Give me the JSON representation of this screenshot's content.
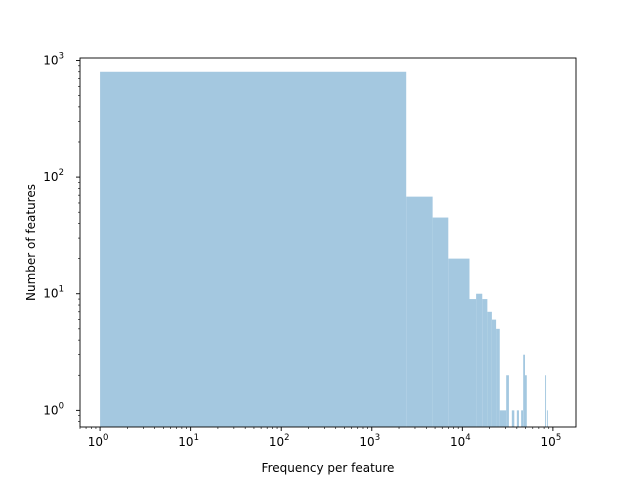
{
  "chart_data": {
    "type": "bar",
    "xlabel": "Frequency per feature",
    "ylabel": "Number of features",
    "xscale": "log",
    "yscale": "log",
    "xlim": [
      0.6,
      180000
    ],
    "ylim": [
      0.72,
      1050
    ],
    "bar_color": "#a4c8e0",
    "grid": false,
    "legend": "none",
    "x_ticks": [
      {
        "value": 1,
        "base": "10",
        "exp": "0"
      },
      {
        "value": 10,
        "base": "10",
        "exp": "1"
      },
      {
        "value": 100,
        "base": "10",
        "exp": "2"
      },
      {
        "value": 1000,
        "base": "10",
        "exp": "3"
      },
      {
        "value": 10000,
        "base": "10",
        "exp": "4"
      },
      {
        "value": 100000,
        "base": "10",
        "exp": "5"
      }
    ],
    "y_ticks": [
      {
        "value": 1,
        "base": "10",
        "exp": "0"
      },
      {
        "value": 10,
        "base": "10",
        "exp": "1"
      },
      {
        "value": 100,
        "base": "10",
        "exp": "2"
      },
      {
        "value": 1000,
        "base": "10",
        "exp": "3"
      }
    ],
    "bins": [
      {
        "x0": 1,
        "x1": 2400,
        "count": 800
      },
      {
        "x0": 2400,
        "x1": 4700,
        "count": 68
      },
      {
        "x0": 4700,
        "x1": 7000,
        "count": 45
      },
      {
        "x0": 7000,
        "x1": 12000,
        "count": 20
      },
      {
        "x0": 12000,
        "x1": 14200,
        "count": 9
      },
      {
        "x0": 14200,
        "x1": 16600,
        "count": 10
      },
      {
        "x0": 16600,
        "x1": 18900,
        "count": 9
      },
      {
        "x0": 18900,
        "x1": 21200,
        "count": 7
      },
      {
        "x0": 21200,
        "x1": 23600,
        "count": 6
      },
      {
        "x0": 23600,
        "x1": 25900,
        "count": 5
      },
      {
        "x0": 25900,
        "x1": 30500,
        "count": 1
      },
      {
        "x0": 30500,
        "x1": 32700,
        "count": 2
      },
      {
        "x0": 35200,
        "x1": 37500,
        "count": 1
      },
      {
        "x0": 40000,
        "x1": 42200,
        "count": 1
      },
      {
        "x0": 44600,
        "x1": 46800,
        "count": 1
      },
      {
        "x0": 47000,
        "x1": 49200,
        "count": 3
      },
      {
        "x0": 49200,
        "x1": 51500,
        "count": 2
      },
      {
        "x0": 82000,
        "x1": 84000,
        "count": 2
      },
      {
        "x0": 86000,
        "x1": 88000,
        "count": 1
      }
    ]
  }
}
